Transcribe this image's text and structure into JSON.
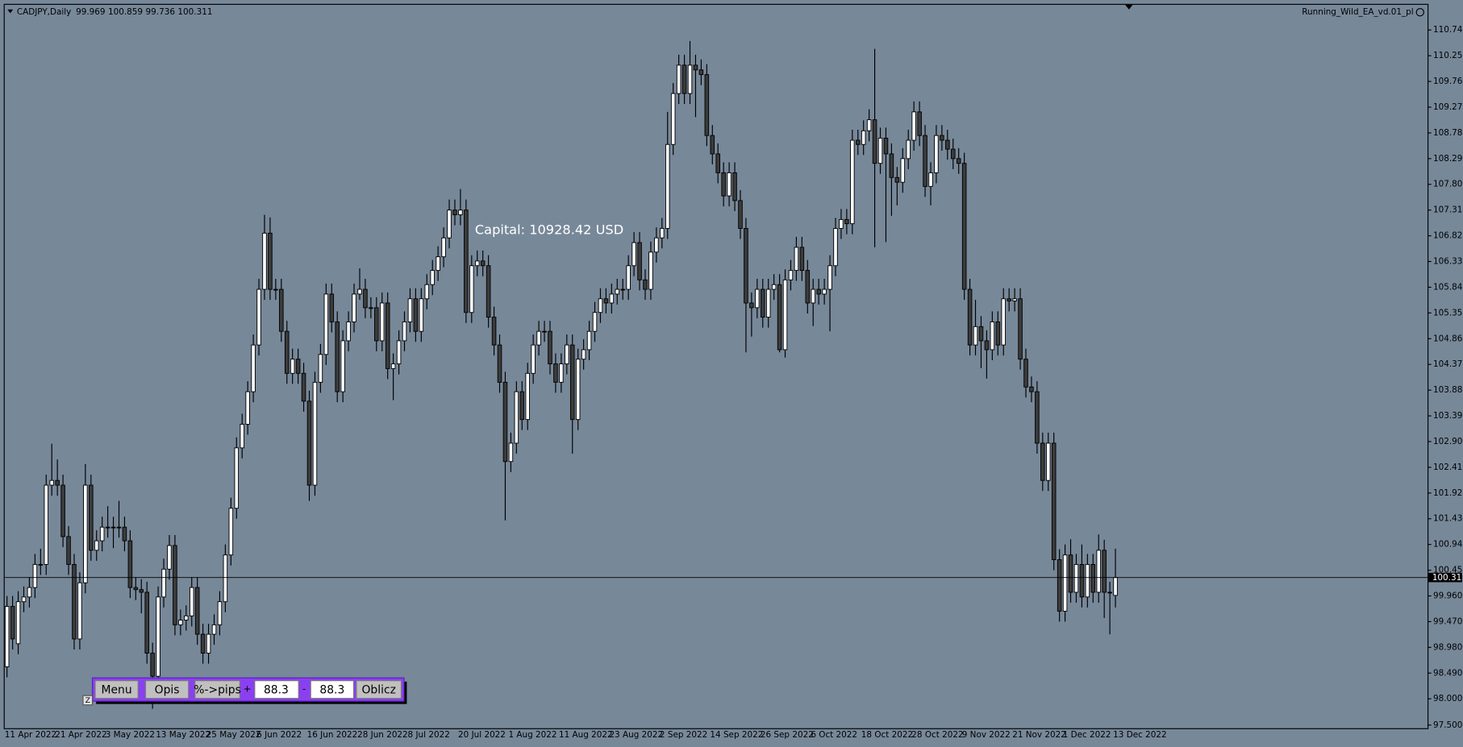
{
  "chart_data": {
    "type": "candlestick",
    "title": "CADJPY,Daily",
    "header_values": [
      99.969,
      100.859,
      99.736,
      100.311
    ],
    "expert_name": "Running_Wild_EA_vd.01_pl",
    "annotation": "Capital: 10928.42 USD",
    "current_price": {
      "value": 100.311,
      "label": "100.311"
    },
    "background": "#778899",
    "up_color": "#ffffff",
    "down_color": "#3c3c3c",
    "wick_color": "#000000",
    "categories": [
      "11 Apr 2022",
      null,
      null,
      null,
      null,
      null,
      null,
      null,
      null,
      "21 Apr 2022",
      null,
      null,
      null,
      null,
      null,
      null,
      null,
      null,
      "3 May 2022",
      null,
      null,
      null,
      null,
      null,
      null,
      null,
      null,
      "13 May 2022",
      null,
      null,
      null,
      null,
      null,
      null,
      null,
      null,
      "25 May 2022",
      null,
      null,
      null,
      null,
      null,
      null,
      null,
      null,
      "6 Jun 2022",
      null,
      null,
      null,
      null,
      null,
      null,
      null,
      null,
      "16 Jun 2022",
      null,
      null,
      null,
      null,
      null,
      null,
      null,
      null,
      "28 Jun 2022",
      null,
      null,
      null,
      null,
      null,
      null,
      null,
      null,
      "8 Jul 2022",
      null,
      null,
      null,
      null,
      null,
      null,
      null,
      null,
      "20 Jul 2022",
      null,
      null,
      null,
      null,
      null,
      null,
      null,
      null,
      "1 Aug 2022",
      null,
      null,
      null,
      null,
      null,
      null,
      null,
      null,
      "11 Aug 2022",
      null,
      null,
      null,
      null,
      null,
      null,
      null,
      null,
      "23 Aug 2022",
      null,
      null,
      null,
      null,
      null,
      null,
      null,
      null,
      "2 Sep 2022",
      null,
      null,
      null,
      null,
      null,
      null,
      null,
      null,
      "14 Sep 2022",
      null,
      null,
      null,
      null,
      null,
      null,
      null,
      null,
      "26 Sep 2022",
      null,
      null,
      null,
      null,
      null,
      null,
      null,
      null,
      "6 Oct 2022",
      null,
      null,
      null,
      null,
      null,
      null,
      null,
      null,
      "18 Oct 2022",
      null,
      null,
      null,
      null,
      null,
      null,
      null,
      null,
      "28 Oct 2022",
      null,
      null,
      null,
      null,
      null,
      null,
      null,
      null,
      "9 Nov 2022",
      null,
      null,
      null,
      null,
      null,
      null,
      null,
      null,
      "21 Nov 2022",
      null,
      null,
      null,
      null,
      null,
      null,
      null,
      null,
      "1 Dec 2022",
      null,
      null,
      null,
      null,
      null,
      null,
      null,
      null,
      "13 Dec 2022"
    ],
    "open": [
      98.61,
      99.76,
      99.05,
      99.85,
      99.94,
      100.12,
      100.56,
      100.56,
      102.07,
      102.16,
      102.07,
      101.09,
      100.56,
      99.14,
      100.21,
      102.07,
      100.83,
      101.01,
      101.27,
      101.27,
      101.27,
      101.27,
      101.01,
      100.12,
      100.08,
      100.03,
      98.87,
      98.43,
      99.94,
      100.47,
      100.92,
      99.41,
      99.5,
      99.58,
      100.12,
      99.23,
      98.87,
      99.23,
      99.41,
      99.85,
      100.74,
      101.63,
      102.78,
      103.23,
      103.85,
      104.74,
      105.8,
      106.87,
      105.8,
      105.8,
      105.0,
      104.2,
      104.47,
      104.2,
      103.67,
      102.07,
      104.03,
      104.56,
      105.71,
      105.18,
      103.85,
      104.82,
      105.18,
      105.71,
      105.8,
      105.45,
      105.45,
      104.82,
      105.54,
      104.29,
      104.38,
      104.82,
      105.18,
      105.62,
      105.0,
      105.62,
      105.89,
      106.16,
      106.42,
      106.78,
      107.31,
      107.22,
      107.31,
      105.36,
      106.25,
      106.34,
      106.25,
      105.27,
      104.74,
      104.03,
      102.52,
      102.87,
      103.85,
      103.32,
      104.2,
      104.74,
      105.0,
      105.0,
      104.38,
      104.03,
      104.38,
      104.74,
      103.32,
      104.47,
      104.65,
      105.0,
      105.36,
      105.62,
      105.54,
      105.71,
      105.8,
      105.8,
      106.25,
      106.69,
      105.98,
      105.8,
      106.51,
      106.78,
      106.96,
      108.56,
      109.53,
      110.07,
      109.53,
      110.07,
      109.98,
      109.89,
      108.73,
      108.38,
      108.02,
      107.58,
      108.02,
      107.49,
      106.96,
      105.54,
      105.45,
      105.8,
      105.27,
      105.8,
      105.89,
      104.65,
      105.98,
      106.16,
      106.6,
      106.16,
      105.54,
      105.8,
      105.71,
      105.8,
      106.25,
      106.96,
      107.13,
      107.05,
      108.64,
      108.56,
      108.82,
      109.03,
      108.2,
      108.68,
      108.38,
      107.93,
      107.84,
      108.29,
      108.64,
      109.18,
      108.73,
      107.76,
      108.02,
      108.73,
      108.64,
      108.47,
      108.29,
      108.2,
      105.8,
      104.74,
      105.09,
      104.82,
      104.65,
      105.18,
      104.74,
      105.62,
      105.58,
      105.62,
      104.47,
      103.94,
      103.85,
      102.87,
      102.16,
      102.87,
      100.65,
      99.67,
      100.74,
      100.03,
      100.56,
      99.94,
      100.56,
      100.03,
      100.83,
      100.03,
      99.97
    ],
    "high": [
      99.96,
      99.96,
      100.05,
      100.14,
      100.32,
      100.76,
      100.86,
      102.27,
      102.86,
      102.56,
      102.27,
      101.29,
      100.76,
      100.41,
      102.47,
      102.27,
      101.21,
      101.47,
      101.67,
      101.47,
      101.77,
      101.47,
      101.21,
      100.32,
      100.28,
      100.23,
      99.07,
      100.14,
      100.67,
      101.12,
      101.12,
      99.7,
      99.78,
      100.32,
      100.32,
      99.43,
      99.43,
      99.61,
      100.05,
      100.94,
      101.83,
      102.98,
      103.43,
      104.05,
      104.94,
      106.0,
      107.22,
      107.17,
      106.0,
      106.0,
      105.2,
      104.67,
      104.67,
      104.4,
      103.87,
      104.23,
      104.76,
      105.91,
      105.91,
      105.38,
      105.02,
      105.38,
      105.91,
      106.2,
      106.0,
      105.65,
      105.65,
      105.74,
      105.74,
      104.58,
      105.02,
      105.38,
      105.82,
      105.82,
      105.82,
      106.09,
      106.36,
      106.62,
      106.98,
      107.51,
      107.51,
      107.71,
      107.51,
      106.45,
      106.54,
      106.54,
      106.45,
      105.47,
      104.94,
      104.23,
      103.07,
      104.05,
      104.05,
      104.4,
      104.94,
      105.2,
      105.2,
      105.2,
      104.58,
      104.58,
      104.94,
      104.94,
      104.67,
      104.85,
      105.2,
      105.56,
      105.82,
      105.82,
      105.91,
      106.0,
      106.0,
      106.45,
      106.89,
      106.89,
      106.18,
      106.71,
      106.98,
      107.16,
      109.18,
      109.73,
      110.27,
      110.27,
      110.53,
      110.27,
      110.18,
      110.09,
      108.93,
      108.58,
      108.22,
      108.22,
      108.22,
      107.69,
      107.16,
      105.74,
      106.0,
      106.0,
      106.0,
      106.09,
      106.09,
      106.18,
      106.36,
      106.8,
      106.8,
      106.36,
      106.0,
      106.0,
      106.0,
      106.45,
      107.16,
      107.33,
      107.33,
      108.84,
      108.84,
      109.02,
      109.23,
      110.38,
      108.88,
      108.88,
      108.58,
      108.13,
      108.49,
      108.84,
      109.38,
      109.38,
      108.93,
      108.22,
      108.93,
      108.93,
      108.84,
      108.67,
      108.49,
      108.4,
      106.0,
      105.6,
      105.29,
      105.02,
      105.38,
      105.38,
      105.82,
      105.82,
      105.82,
      105.82,
      104.67,
      104.14,
      104.05,
      103.07,
      103.07,
      103.07,
      100.85,
      100.94,
      101.04,
      100.76,
      100.94,
      100.76,
      100.76,
      101.13,
      101.03,
      100.23,
      100.86
    ],
    "low": [
      98.41,
      98.94,
      98.85,
      99.65,
      99.74,
      99.92,
      100.36,
      100.36,
      101.87,
      101.87,
      100.89,
      100.36,
      98.94,
      98.94,
      100.01,
      100.63,
      100.63,
      100.81,
      101.07,
      100.87,
      101.07,
      100.81,
      99.92,
      99.88,
      99.63,
      98.67,
      97.81,
      98.23,
      99.74,
      100.27,
      99.21,
      99.21,
      99.3,
      99.38,
      99.03,
      98.67,
      98.67,
      99.03,
      99.21,
      99.65,
      100.54,
      101.43,
      102.58,
      103.03,
      103.65,
      104.54,
      105.6,
      105.6,
      105.6,
      104.8,
      104.0,
      104.0,
      104.0,
      103.47,
      101.77,
      101.87,
      103.83,
      104.36,
      104.98,
      103.65,
      103.65,
      104.62,
      104.98,
      105.6,
      105.25,
      105.25,
      104.62,
      104.62,
      104.09,
      103.69,
      104.18,
      104.62,
      104.98,
      104.8,
      104.8,
      105.42,
      105.69,
      105.96,
      106.22,
      106.58,
      107.02,
      107.02,
      105.16,
      105.16,
      106.05,
      106.05,
      105.07,
      104.54,
      103.83,
      101.4,
      102.32,
      102.67,
      103.12,
      103.12,
      104.0,
      104.54,
      104.8,
      104.18,
      103.83,
      103.83,
      104.18,
      102.67,
      103.12,
      104.27,
      104.45,
      104.8,
      105.16,
      105.34,
      105.34,
      105.51,
      105.6,
      105.6,
      106.05,
      105.78,
      105.6,
      105.6,
      106.31,
      106.58,
      106.76,
      108.36,
      109.33,
      109.33,
      109.33,
      109.08,
      109.69,
      108.53,
      108.18,
      107.82,
      107.38,
      107.38,
      107.29,
      106.76,
      104.6,
      104.9,
      105.25,
      105.07,
      105.07,
      105.6,
      104.6,
      104.5,
      105.78,
      105.96,
      105.96,
      105.34,
      105.1,
      105.51,
      105.51,
      105.0,
      106.05,
      106.76,
      106.85,
      106.85,
      108.36,
      108.36,
      108.62,
      106.6,
      108.0,
      106.7,
      107.2,
      107.4,
      107.64,
      108.09,
      108.44,
      108.53,
      107.56,
      107.4,
      107.82,
      108.44,
      108.27,
      108.09,
      108.0,
      105.6,
      104.54,
      104.54,
      104.3,
      104.1,
      104.45,
      104.54,
      104.54,
      105.38,
      105.38,
      104.27,
      103.74,
      103.65,
      102.67,
      101.96,
      101.96,
      100.45,
      99.47,
      99.47,
      99.83,
      99.83,
      99.74,
      99.74,
      99.83,
      99.83,
      99.54,
      99.23,
      99.74
    ],
    "close": [
      99.76,
      99.14,
      99.85,
      99.94,
      100.12,
      100.56,
      100.56,
      102.07,
      102.16,
      102.07,
      101.09,
      100.56,
      99.14,
      100.21,
      102.07,
      100.83,
      101.01,
      101.27,
      101.27,
      101.27,
      101.27,
      101.01,
      100.12,
      100.08,
      100.03,
      98.87,
      98.43,
      99.94,
      100.47,
      100.92,
      99.41,
      99.5,
      99.58,
      100.12,
      99.23,
      98.87,
      99.23,
      99.41,
      99.85,
      100.74,
      101.63,
      102.78,
      103.23,
      103.85,
      104.74,
      105.8,
      106.87,
      105.8,
      105.8,
      105.0,
      104.2,
      104.47,
      104.2,
      103.67,
      102.07,
      104.03,
      104.56,
      105.71,
      105.18,
      103.85,
      104.82,
      105.18,
      105.71,
      105.8,
      105.45,
      105.45,
      104.82,
      105.54,
      104.29,
      104.38,
      104.82,
      105.18,
      105.62,
      105.0,
      105.62,
      105.89,
      106.16,
      106.42,
      106.78,
      107.31,
      107.22,
      107.31,
      105.36,
      106.25,
      106.34,
      106.25,
      105.27,
      104.74,
      104.03,
      102.52,
      102.87,
      103.85,
      103.32,
      104.2,
      104.74,
      105.0,
      105.0,
      104.38,
      104.03,
      104.38,
      104.74,
      103.32,
      104.47,
      104.65,
      105.0,
      105.36,
      105.62,
      105.54,
      105.71,
      105.8,
      105.8,
      106.25,
      106.69,
      105.98,
      105.8,
      106.51,
      106.78,
      106.96,
      108.56,
      109.53,
      110.07,
      109.53,
      110.07,
      109.98,
      109.89,
      108.73,
      108.38,
      108.02,
      107.58,
      108.02,
      107.49,
      106.96,
      105.54,
      105.45,
      105.8,
      105.27,
      105.8,
      105.89,
      104.65,
      105.98,
      106.16,
      106.6,
      106.16,
      105.54,
      105.8,
      105.71,
      105.8,
      106.25,
      106.96,
      107.13,
      107.05,
      108.64,
      108.56,
      108.82,
      109.03,
      108.2,
      108.68,
      108.38,
      107.93,
      107.84,
      108.29,
      108.64,
      109.18,
      108.73,
      107.76,
      108.02,
      108.73,
      108.64,
      108.47,
      108.29,
      108.2,
      105.8,
      104.74,
      105.09,
      104.82,
      104.65,
      105.18,
      104.74,
      105.62,
      105.58,
      105.62,
      104.47,
      103.94,
      103.85,
      102.87,
      102.16,
      102.87,
      100.65,
      99.67,
      100.74,
      100.03,
      100.56,
      99.94,
      100.56,
      100.03,
      100.83,
      100.03,
      100.03,
      100.31
    ],
    "ylim": [
      97.44,
      111.22
    ],
    "yticks": [
      {
        "value": 110.74,
        "label": "110.740"
      },
      {
        "value": 110.25,
        "label": "110.250"
      },
      {
        "value": 109.76,
        "label": "109.760"
      },
      {
        "value": 109.27,
        "label": "109.270"
      },
      {
        "value": 108.78,
        "label": "108.780"
      },
      {
        "value": 108.29,
        "label": "108.290"
      },
      {
        "value": 107.8,
        "label": "107.800"
      },
      {
        "value": 107.31,
        "label": "107.310"
      },
      {
        "value": 106.82,
        "label": "106.820"
      },
      {
        "value": 106.33,
        "label": "106.330"
      },
      {
        "value": 105.84,
        "label": "105.840"
      },
      {
        "value": 105.35,
        "label": "105.350"
      },
      {
        "value": 104.86,
        "label": "104.860"
      },
      {
        "value": 104.37,
        "label": "104.370"
      },
      {
        "value": 103.88,
        "label": "103.880"
      },
      {
        "value": 103.39,
        "label": "103.390"
      },
      {
        "value": 102.9,
        "label": "102.900"
      },
      {
        "value": 102.41,
        "label": "102.410"
      },
      {
        "value": 101.92,
        "label": "101.920"
      },
      {
        "value": 101.43,
        "label": "101.430"
      },
      {
        "value": 100.94,
        "label": "100.940"
      },
      {
        "value": 100.45,
        "label": "100.450"
      },
      {
        "value": 99.96,
        "label": "99.960"
      },
      {
        "value": 99.47,
        "label": "99.470"
      },
      {
        "value": 98.98,
        "label": "98.980"
      },
      {
        "value": 98.49,
        "label": "98.490"
      },
      {
        "value": 98,
        "label": "98.000"
      },
      {
        "value": 97.5,
        "label": "97.500"
      }
    ],
    "grid": false
  },
  "panel": {
    "buttons": [
      "Menu",
      "Opis",
      "%->pips",
      "Oblicz"
    ],
    "plus": "+",
    "minus": "-",
    "inputs": [
      88.3,
      88.3
    ],
    "corner_label": "Z"
  }
}
